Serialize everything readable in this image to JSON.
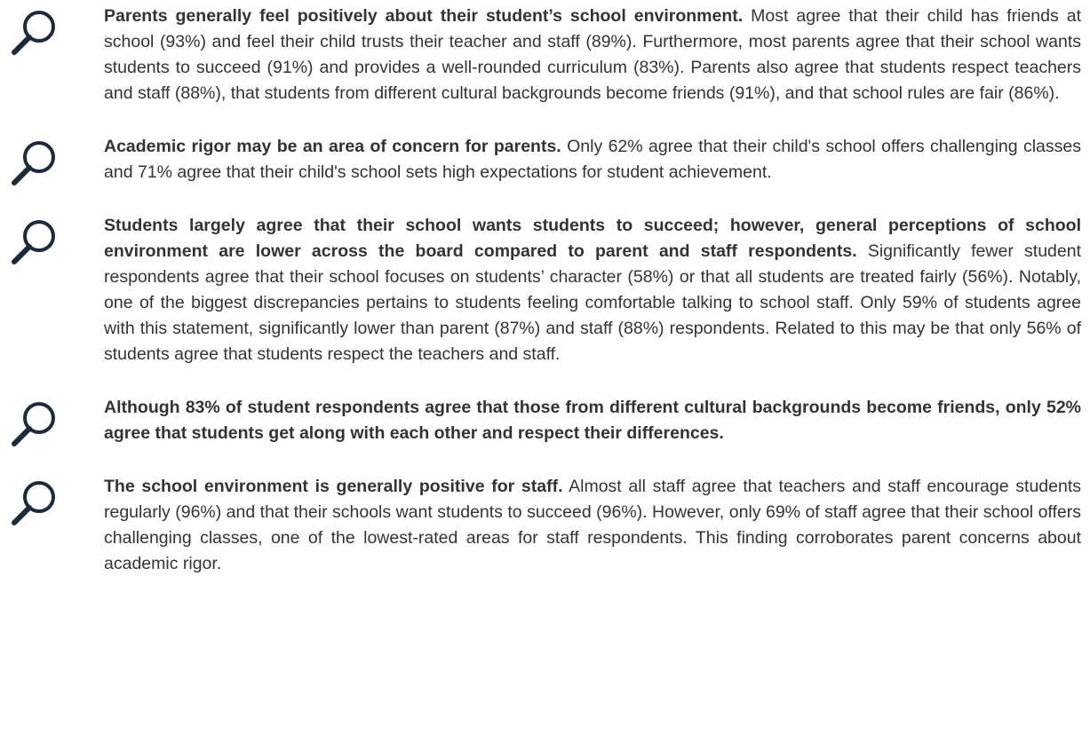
{
  "findings": [
    {
      "lead": "Parents generally feel positively about their student’s school environment.",
      "body": "Most agree that their child has friends at school (93%) and feel their child trusts their teacher and staff (89%). Furthermore, most parents agree that their school wants students to succeed (91%) and provides a well-rounded curriculum (83%). Parents also agree that students respect teachers and staff (88%), that students from different cultural backgrounds become friends (91%), and that school rules are fair (86%)."
    },
    {
      "lead": "Academic rigor may be an area of concern for parents.",
      "body": "Only 62% agree that their child's school offers challenging classes and 71% agree that their child's school sets high expectations for student achievement."
    },
    {
      "lead": "Students largely agree that their school wants students to succeed; however, general perceptions of school environment are lower across the board compared to parent and staff respondents.",
      "body": "Significantly fewer student respondents agree that their school focuses on students’ character (58%) or that all students are treated fairly (56%). Notably, one of the biggest discrepancies pertains to students feeling comfortable talking to school staff. Only 59% of students agree with this statement, significantly lower than parent (87%) and staff (88%) respondents. Related to this may be that only 56% of students agree that students respect the teachers and staff."
    },
    {
      "lead": "Although 83% of student respondents agree that those from different cultural backgrounds become friends, only 52% agree that students get along with each other and respect their differences."
    },
    {
      "lead": "The school environment is generally positive for staff.",
      "body": "Almost all staff agree that teachers and staff encourage students regularly (96%) and that their schools want students to succeed (96%). However, only 69% of staff agree that their school offers challenging classes, one of the lowest-rated areas for staff respondents. This finding corroborates parent concerns about academic rigor."
    }
  ]
}
